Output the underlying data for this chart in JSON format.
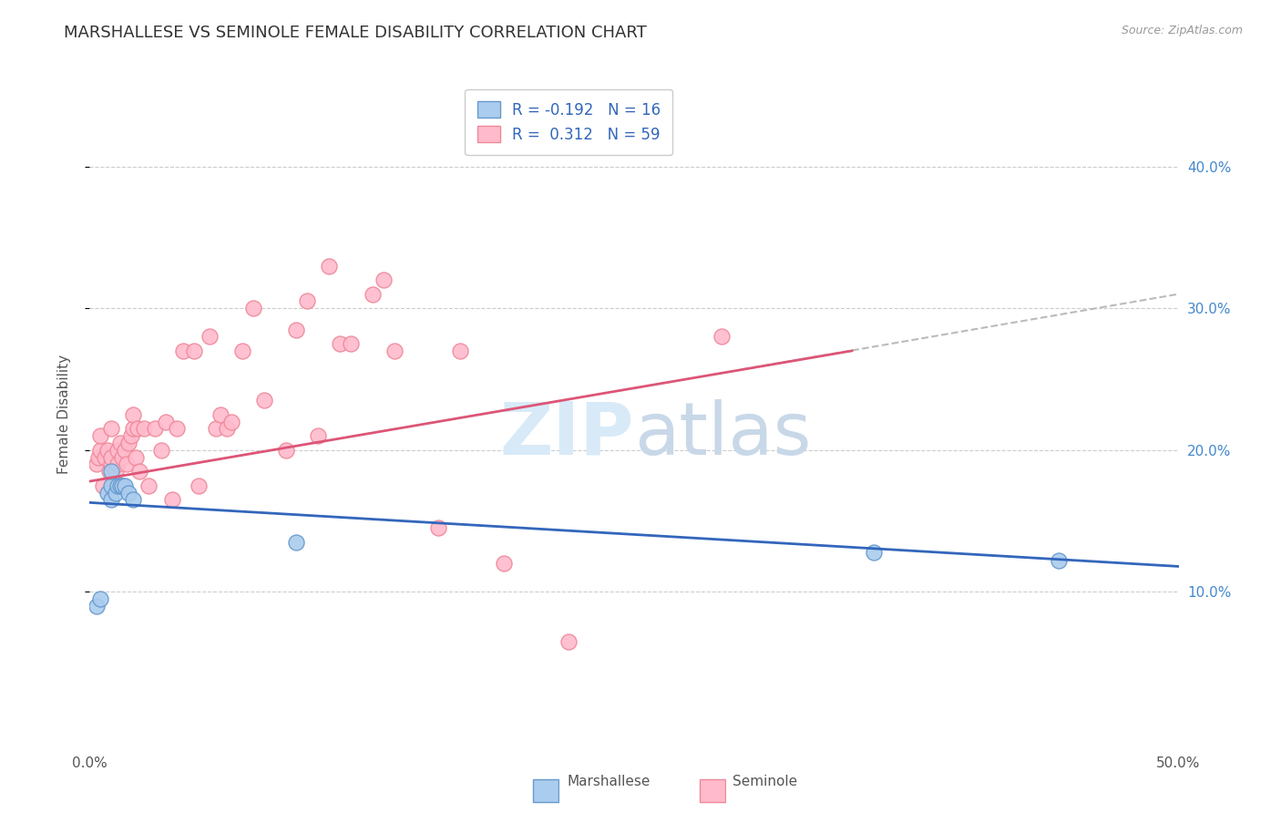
{
  "title": "MARSHALLESE VS SEMINOLE FEMALE DISABILITY CORRELATION CHART",
  "source": "Source: ZipAtlas.com",
  "ylabel": "Female Disability",
  "xlim": [
    0.0,
    0.5
  ],
  "ylim": [
    -0.01,
    0.46
  ],
  "legend_r_blue": "-0.192",
  "legend_n_blue": "16",
  "legend_r_pink": "0.312",
  "legend_n_pink": "59",
  "blue_line_color": "#3366BB",
  "pink_line_color": "#DD5577",
  "blue_scatter_face": "#AACCEE",
  "blue_scatter_edge": "#6699CC",
  "pink_scatter_face": "#FFBBCC",
  "pink_scatter_edge": "#EE8899",
  "dash_color": "#BBBBBB",
  "watermark_color": "#D8EAF8",
  "background_color": "#ffffff",
  "grid_color": "#CCCCCC",
  "marshallese_x": [
    0.003,
    0.005,
    0.008,
    0.01,
    0.01,
    0.01,
    0.012,
    0.013,
    0.014,
    0.015,
    0.016,
    0.018,
    0.02,
    0.095,
    0.36,
    0.445
  ],
  "marshallese_y": [
    0.09,
    0.095,
    0.17,
    0.165,
    0.175,
    0.185,
    0.17,
    0.175,
    0.175,
    0.175,
    0.175,
    0.17,
    0.165,
    0.135,
    0.128,
    0.122
  ],
  "seminole_x": [
    0.003,
    0.004,
    0.005,
    0.005,
    0.006,
    0.007,
    0.008,
    0.009,
    0.01,
    0.01,
    0.01,
    0.012,
    0.013,
    0.013,
    0.014,
    0.015,
    0.015,
    0.016,
    0.017,
    0.018,
    0.019,
    0.02,
    0.02,
    0.021,
    0.022,
    0.023,
    0.025,
    0.027,
    0.03,
    0.033,
    0.035,
    0.038,
    0.04,
    0.043,
    0.048,
    0.05,
    0.055,
    0.058,
    0.06,
    0.063,
    0.065,
    0.07,
    0.075,
    0.08,
    0.09,
    0.095,
    0.1,
    0.105,
    0.11,
    0.115,
    0.12,
    0.13,
    0.135,
    0.14,
    0.16,
    0.17,
    0.19,
    0.22,
    0.29
  ],
  "seminole_y": [
    0.19,
    0.195,
    0.2,
    0.21,
    0.175,
    0.195,
    0.2,
    0.185,
    0.19,
    0.195,
    0.215,
    0.185,
    0.19,
    0.2,
    0.205,
    0.175,
    0.195,
    0.2,
    0.19,
    0.205,
    0.21,
    0.215,
    0.225,
    0.195,
    0.215,
    0.185,
    0.215,
    0.175,
    0.215,
    0.2,
    0.22,
    0.165,
    0.215,
    0.27,
    0.27,
    0.175,
    0.28,
    0.215,
    0.225,
    0.215,
    0.22,
    0.27,
    0.3,
    0.235,
    0.2,
    0.285,
    0.305,
    0.21,
    0.33,
    0.275,
    0.275,
    0.31,
    0.32,
    0.27,
    0.145,
    0.27,
    0.12,
    0.065,
    0.28
  ],
  "blue_line_x": [
    0.0,
    0.5
  ],
  "blue_line_y": [
    0.163,
    0.118
  ],
  "pink_line_x": [
    0.0,
    0.35
  ],
  "pink_line_y": [
    0.178,
    0.27
  ],
  "dash_line_x": [
    0.3,
    0.5
  ],
  "dash_line_y": [
    0.257,
    0.31
  ]
}
